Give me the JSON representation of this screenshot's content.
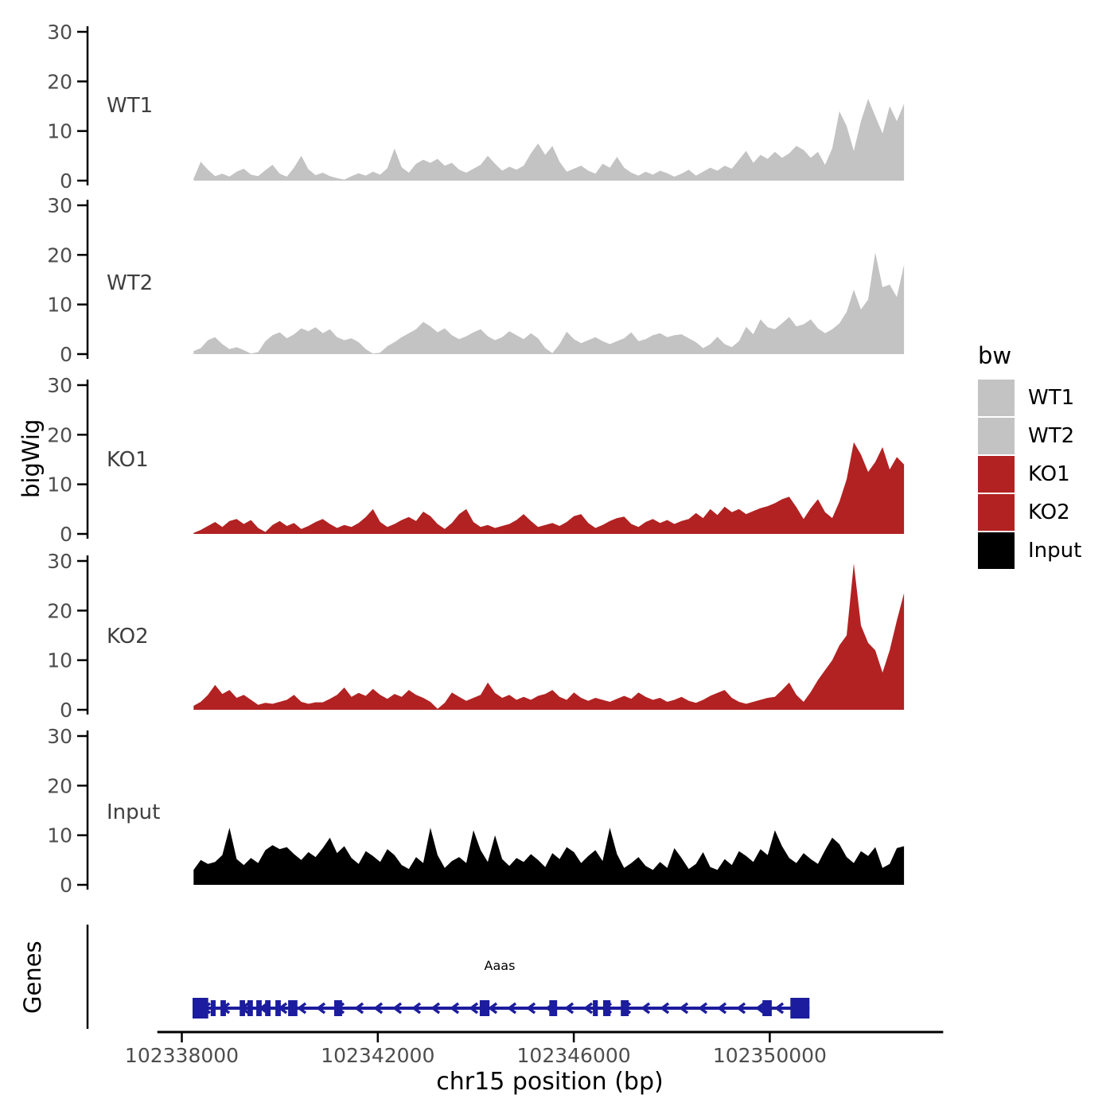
{
  "colors": {
    "wt_gray": "#C3C3C3",
    "ko_red": "#B22222",
    "input_black": "#000000",
    "gene_blue": "#1C1C9E",
    "axis_line": "#000000",
    "tick_text": "#4D4D4D",
    "track_label_text": "#3F3F3F"
  },
  "y_axis": {
    "label": "bigWig",
    "ticks": [
      0,
      10,
      20,
      30
    ],
    "ylim": [
      0,
      30
    ]
  },
  "x_axis": {
    "label": "chr15 position (bp)",
    "ticks": [
      102338000,
      102342000,
      102346000,
      102350000
    ],
    "range": [
      102337500,
      102353540
    ]
  },
  "legend": {
    "title": "bw",
    "entries": [
      {
        "label": "WT1",
        "color": "#C3C3C3"
      },
      {
        "label": "WT2",
        "color": "#C3C3C3"
      },
      {
        "label": "KO1",
        "color": "#B22222"
      },
      {
        "label": "KO2",
        "color": "#B22222"
      },
      {
        "label": "Input",
        "color": "#000000"
      }
    ]
  },
  "genes_panel": {
    "label": "Genes",
    "gene": {
      "name": "Aaas",
      "strand": "-",
      "start": 102338220,
      "end": 102350810,
      "exons": [
        [
          102338220,
          102338540
        ],
        [
          102338590,
          102338690
        ],
        [
          102338790,
          102338900
        ],
        [
          102339180,
          102339290
        ],
        [
          102339340,
          102339450
        ],
        [
          102339520,
          102339630
        ],
        [
          102339700,
          102339810
        ],
        [
          102339910,
          102340020
        ],
        [
          102340170,
          102340360
        ],
        [
          102341110,
          102341270
        ],
        [
          102344080,
          102344280
        ],
        [
          102345500,
          102345660
        ],
        [
          102346390,
          102346490
        ],
        [
          102346600,
          102346750
        ],
        [
          102346960,
          102347120
        ],
        [
          102349850,
          102350040
        ],
        [
          102350420,
          102350810
        ]
      ]
    }
  },
  "chart_data": {
    "type": "area",
    "title": "",
    "xlabel": "chr15 position (bp)",
    "ylabel": "bigWig",
    "ylim": [
      0,
      30
    ],
    "x_start": 102338240,
    "x_end": 102352740,
    "sampling_note": "values evenly spaced from x_start to x_end",
    "tracks": [
      {
        "name": "WT1",
        "color": "#C3C3C3",
        "values": [
          0.4,
          3.8,
          2.2,
          0.9,
          1.4,
          0.8,
          1.8,
          2.4,
          1.2,
          0.9,
          2.1,
          3.2,
          1.4,
          0.8,
          2.6,
          5.0,
          2.3,
          1.1,
          1.6,
          0.9,
          0.5,
          0.2,
          0.9,
          1.5,
          1.0,
          1.8,
          1.2,
          2.5,
          6.5,
          2.7,
          1.6,
          3.4,
          4.2,
          3.6,
          4.4,
          3.0,
          3.6,
          2.2,
          1.6,
          2.4,
          3.2,
          5.0,
          3.4,
          2.0,
          2.8,
          2.2,
          3.0,
          5.5,
          7.5,
          5.2,
          7.0,
          3.8,
          1.8,
          2.4,
          3.0,
          2.0,
          1.4,
          3.4,
          2.6,
          4.8,
          2.6,
          1.6,
          1.0,
          1.8,
          1.2,
          2.0,
          1.5,
          0.8,
          1.4,
          2.2,
          1.0,
          1.8,
          2.6,
          2.0,
          3.0,
          2.4,
          4.2,
          6.0,
          3.6,
          5.2,
          4.4,
          5.8,
          4.6,
          5.5,
          7.0,
          6.2,
          4.6,
          5.8,
          3.2,
          6.5,
          14,
          11,
          6,
          12,
          16.5,
          13,
          9.5,
          15,
          12,
          15.5
        ]
      },
      {
        "name": "WT2",
        "color": "#C3C3C3",
        "values": [
          0.6,
          1.2,
          2.8,
          3.4,
          2.0,
          1.0,
          1.4,
          0.8,
          0.1,
          0.4,
          2.6,
          3.8,
          4.4,
          3.2,
          4.0,
          5.2,
          4.6,
          5.4,
          4.2,
          5.0,
          3.4,
          2.8,
          3.2,
          2.4,
          1.0,
          0.1,
          0.3,
          1.6,
          2.4,
          3.4,
          4.2,
          5.0,
          6.5,
          5.6,
          4.4,
          5.2,
          3.8,
          3.0,
          3.6,
          4.4,
          5.0,
          3.6,
          2.8,
          3.4,
          4.6,
          3.8,
          3.0,
          4.2,
          3.2,
          1.2,
          0.2,
          2.0,
          4.5,
          3.0,
          2.2,
          2.8,
          3.4,
          2.6,
          2.0,
          2.6,
          3.2,
          4.4,
          2.6,
          3.0,
          3.8,
          4.2,
          3.4,
          3.8,
          4.0,
          3.2,
          2.4,
          1.2,
          2.0,
          3.5,
          2.0,
          1.4,
          2.6,
          5.5,
          4.0,
          7.0,
          5.4,
          5.0,
          6.2,
          7.5,
          5.6,
          6.0,
          7.0,
          5.2,
          4.2,
          5.0,
          6.2,
          8.5,
          13,
          9,
          11,
          20.5,
          13.5,
          14,
          11.5,
          18
        ]
      },
      {
        "name": "KO1",
        "color": "#B22222",
        "values": [
          0.2,
          0.8,
          1.6,
          2.4,
          1.4,
          2.6,
          3.0,
          2.0,
          2.8,
          1.2,
          0.4,
          1.8,
          2.6,
          1.6,
          2.2,
          1.0,
          1.6,
          2.4,
          3.0,
          2.0,
          1.2,
          1.8,
          1.4,
          2.2,
          3.4,
          5.0,
          2.4,
          1.4,
          2.0,
          2.8,
          3.4,
          2.6,
          4.5,
          3.6,
          2.0,
          1.0,
          2.2,
          4.0,
          5.0,
          2.4,
          1.4,
          1.8,
          1.2,
          1.6,
          2.0,
          2.8,
          4.0,
          2.6,
          1.4,
          1.8,
          2.2,
          1.6,
          2.4,
          3.6,
          4.0,
          2.2,
          1.2,
          1.8,
          2.6,
          3.2,
          3.5,
          2.0,
          1.4,
          2.4,
          3.0,
          2.2,
          2.8,
          2.0,
          2.6,
          3.0,
          4.2,
          3.2,
          5.0,
          3.8,
          5.5,
          4.4,
          5.0,
          4.0,
          4.6,
          5.2,
          5.6,
          6.2,
          7.0,
          7.5,
          5.4,
          3.0,
          5.2,
          7.0,
          4.4,
          3.2,
          6.5,
          11,
          18.5,
          16,
          12.5,
          14.5,
          17.5,
          13,
          15.5,
          14
        ]
      },
      {
        "name": "KO2",
        "color": "#B22222",
        "values": [
          0.8,
          1.6,
          3.0,
          5.0,
          3.2,
          4.0,
          2.4,
          3.0,
          2.0,
          1.0,
          1.4,
          1.2,
          1.6,
          2.0,
          3.0,
          1.6,
          1.2,
          1.5,
          1.5,
          2.2,
          3.0,
          4.5,
          2.6,
          3.4,
          2.8,
          4.2,
          3.0,
          2.2,
          3.2,
          2.6,
          4.0,
          3.0,
          2.4,
          1.6,
          0.2,
          1.4,
          3.5,
          2.6,
          1.8,
          2.4,
          3.0,
          5.5,
          3.4,
          2.4,
          3.0,
          2.0,
          2.6,
          2.0,
          2.8,
          3.2,
          4.0,
          2.6,
          2.0,
          3.5,
          2.4,
          1.8,
          2.4,
          2.0,
          1.6,
          2.2,
          2.8,
          2.2,
          3.5,
          2.6,
          2.0,
          2.4,
          1.6,
          2.0,
          2.6,
          1.8,
          1.4,
          2.0,
          2.8,
          3.4,
          4.0,
          2.4,
          1.6,
          1.2,
          1.6,
          2.0,
          2.4,
          2.6,
          4.0,
          5.5,
          3.0,
          1.6,
          3.6,
          6.0,
          8.0,
          10,
          13,
          15,
          29.5,
          17,
          13.5,
          12,
          7.5,
          12,
          18,
          23.5
        ]
      },
      {
        "name": "Input",
        "color": "#000000",
        "values": [
          3.0,
          5.0,
          4.2,
          4.6,
          6.0,
          11.5,
          5.2,
          4.0,
          5.4,
          4.4,
          7.0,
          8.0,
          7.2,
          7.6,
          6.2,
          5.0,
          6.6,
          5.6,
          7.4,
          9.5,
          6.4,
          7.8,
          5.4,
          4.2,
          6.8,
          5.8,
          4.6,
          7.2,
          6.0,
          4.0,
          3.2,
          5.6,
          4.4,
          11.5,
          6.0,
          3.4,
          4.8,
          5.6,
          4.4,
          11,
          7.0,
          4.6,
          10,
          5.2,
          3.8,
          5.4,
          4.6,
          6.2,
          5.0,
          3.6,
          6.4,
          5.2,
          7.6,
          6.6,
          4.4,
          5.8,
          7.0,
          4.8,
          11.5,
          6.2,
          3.4,
          4.4,
          5.6,
          3.8,
          3.0,
          4.6,
          3.4,
          7.4,
          5.4,
          3.2,
          4.2,
          6.6,
          3.6,
          3.0,
          5.2,
          4.0,
          6.8,
          5.8,
          4.6,
          7.2,
          6.0,
          11,
          7.8,
          5.4,
          4.4,
          6.4,
          5.2,
          4.2,
          7.0,
          9.5,
          8.2,
          5.6,
          4.4,
          6.8,
          5.8,
          7.6,
          3.4,
          4.2,
          7.4,
          7.8
        ]
      }
    ]
  }
}
